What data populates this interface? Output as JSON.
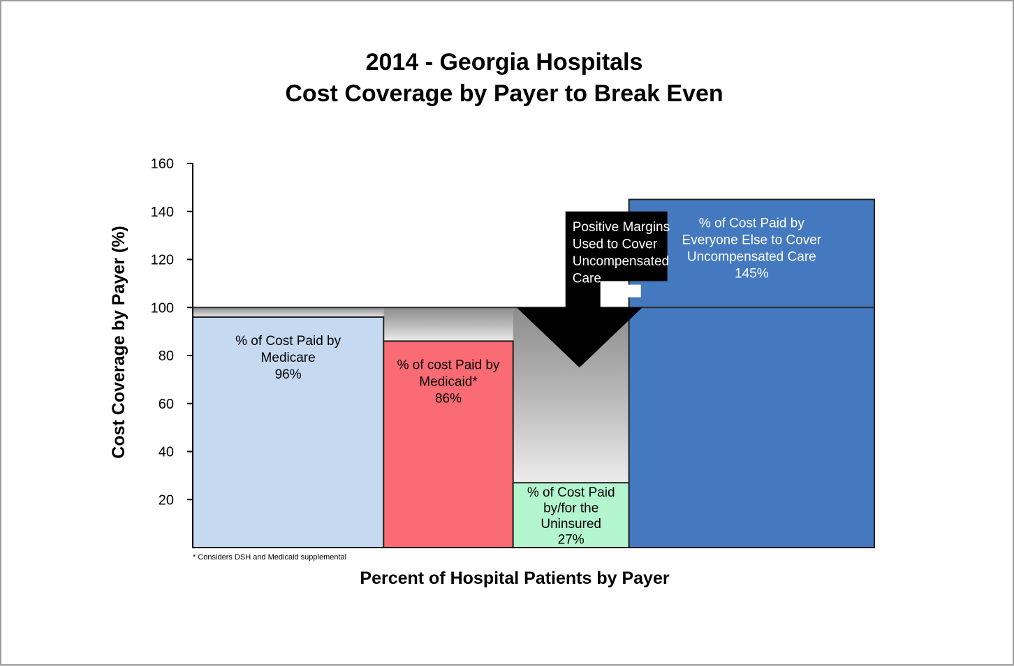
{
  "chart_data": {
    "type": "bar",
    "title": [
      "2014 - Georgia Hospitals",
      "Cost Coverage by Payer to Break Even"
    ],
    "xlabel": "Percent of Hospital Patients by Payer",
    "ylabel": "Cost Coverage by Payer (%)",
    "ylim": [
      0,
      160
    ],
    "yticks": [
      20,
      40,
      60,
      80,
      100,
      120,
      140,
      160
    ],
    "break_even": 100,
    "grid": false,
    "footnote": "* Considers DSH and Medicaid supplemental",
    "bars": [
      {
        "label": [
          "% of Cost Paid by",
          "Medicare",
          "96%"
        ],
        "value": 96,
        "share": 28,
        "color": "#c5d9f1",
        "text_color": "#000000"
      },
      {
        "label": [
          "% of cost Paid by",
          "Medicaid*",
          "86%"
        ],
        "value": 86,
        "share": 19,
        "color": "#fa6b73",
        "text_color": "#000000"
      },
      {
        "label": [
          "% of Cost Paid",
          "by/for the",
          "Uninsured",
          "27%"
        ],
        "value": 27,
        "share": 17,
        "color": "#b2f5cf",
        "text_color": "#000000"
      },
      {
        "label": [
          "% of Cost Paid by",
          "Everyone Else to Cover",
          "Uncompensated Care",
          "145%"
        ],
        "value": 145,
        "share": 36,
        "color": "#4479c0",
        "text_color": "#ffffff"
      }
    ],
    "annotation": [
      "Positive Margins",
      "Used to Cover",
      "Uncompensated",
      "Care"
    ]
  }
}
